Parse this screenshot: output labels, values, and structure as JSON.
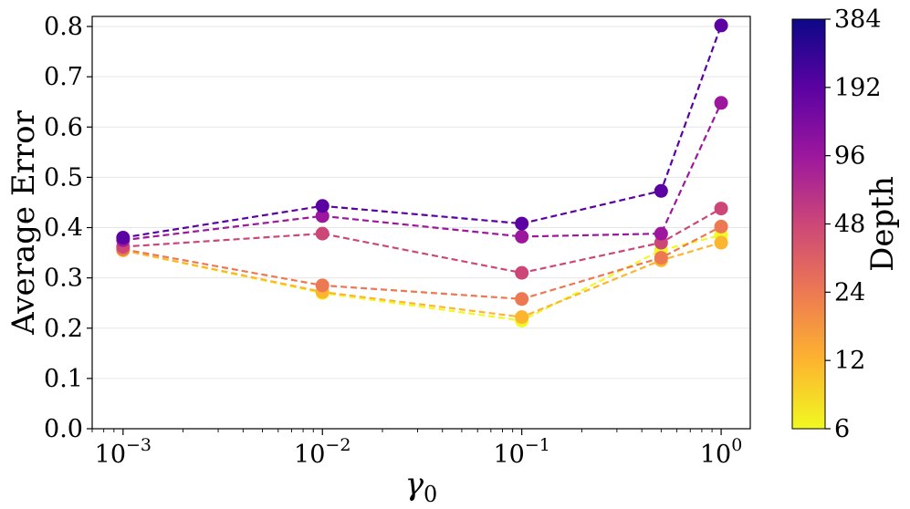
{
  "chart_data": {
    "type": "line",
    "x_scale": "log",
    "xlabel_base": "γ",
    "xlabel_sub": "0",
    "ylabel": "Average Error",
    "xlim": [
      0.0007,
      1.4
    ],
    "ylim": [
      0.0,
      0.82
    ],
    "grid": true,
    "x_ticks": [
      {
        "value": 0.001,
        "base": "10",
        "exp": "−3"
      },
      {
        "value": 0.01,
        "base": "10",
        "exp": "−2"
      },
      {
        "value": 0.1,
        "base": "10",
        "exp": "−1"
      },
      {
        "value": 1,
        "base": "10",
        "exp": "0"
      }
    ],
    "y_ticks": [
      {
        "value": 0.0,
        "label": "0.0"
      },
      {
        "value": 0.1,
        "label": "0.1"
      },
      {
        "value": 0.2,
        "label": "0.2"
      },
      {
        "value": 0.3,
        "label": "0.3"
      },
      {
        "value": 0.4,
        "label": "0.4"
      },
      {
        "value": 0.5,
        "label": "0.5"
      },
      {
        "value": 0.6,
        "label": "0.6"
      },
      {
        "value": 0.7,
        "label": "0.7"
      },
      {
        "value": 0.8,
        "label": "0.8"
      }
    ],
    "x": [
      0.001,
      0.01,
      0.1,
      0.5,
      1.0
    ],
    "series": [
      {
        "name": "Depth 6",
        "color": "#f0f921",
        "values": [
          0.355,
          0.27,
          0.215,
          0.355,
          0.385
        ]
      },
      {
        "name": "Depth 12",
        "color": "#fdb42f",
        "values": [
          0.355,
          0.272,
          0.222,
          0.335,
          0.37
        ]
      },
      {
        "name": "Depth 24",
        "color": "#ed7953",
        "values": [
          0.357,
          0.285,
          0.258,
          0.34,
          0.402
        ]
      },
      {
        "name": "Depth 48",
        "color": "#cc4778",
        "values": [
          0.362,
          0.388,
          0.31,
          0.37,
          0.438
        ]
      },
      {
        "name": "Depth 96",
        "color": "#9c179e",
        "values": [
          0.375,
          0.423,
          0.382,
          0.388,
          0.648
        ]
      },
      {
        "name": "Depth 192",
        "color": "#5b02a3",
        "values": [
          0.38,
          0.443,
          0.408,
          0.473,
          0.802
        ]
      }
    ],
    "colorbar": {
      "label": "Depth",
      "scale": "log",
      "range": [
        6,
        384
      ],
      "ticks": [
        {
          "value": 6,
          "label": "6"
        },
        {
          "value": 12,
          "label": "12"
        },
        {
          "value": 24,
          "label": "24"
        },
        {
          "value": 48,
          "label": "48"
        },
        {
          "value": 96,
          "label": "96"
        },
        {
          "value": 192,
          "label": "192"
        },
        {
          "value": 384,
          "label": "384"
        }
      ],
      "colormap": [
        "#f0f921",
        "#fdb42f",
        "#ed7953",
        "#cc4778",
        "#9c179e",
        "#5b02a3",
        "#0d0887"
      ]
    }
  }
}
